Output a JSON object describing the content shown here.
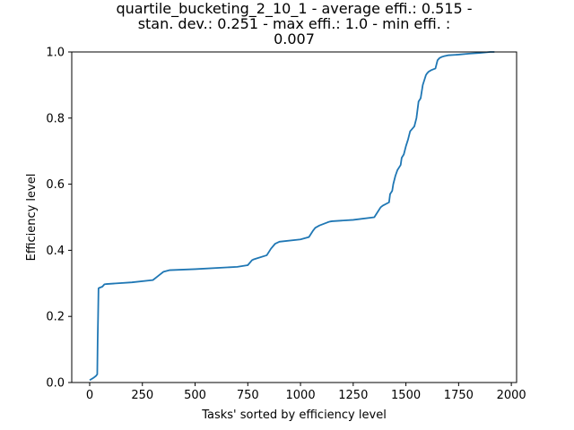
{
  "chart_data": {
    "type": "line",
    "title_lines": [
      "quartile_bucketing_2_10_1 - average effi.: 0.515 -",
      "stan. dev.: 0.251 - max effi.: 1.0 - min effi. :",
      "0.007"
    ],
    "xlabel": "Tasks' sorted by efficiency level",
    "ylabel": "Efficiency level",
    "xlim": [
      -85,
      2025
    ],
    "ylim": [
      0,
      1
    ],
    "x_ticks": [
      0,
      250,
      500,
      750,
      1000,
      1250,
      1500,
      1750,
      2000
    ],
    "y_ticks": [
      0.0,
      0.2,
      0.4,
      0.6,
      0.8,
      1.0
    ],
    "x_tick_labels": [
      "0",
      "250",
      "500",
      "750",
      "1000",
      "1250",
      "1500",
      "1750",
      "2000"
    ],
    "y_tick_labels": [
      "0.0",
      "0.2",
      "0.4",
      "0.6",
      "0.8",
      "1.0"
    ],
    "grid": false,
    "line_color": "#1f77b4",
    "series": [
      {
        "x": [
          0,
          20,
          30,
          36,
          38,
          40,
          42,
          48,
          60,
          70,
          80,
          200,
          300,
          320,
          330,
          350,
          380,
          500,
          700,
          750,
          770,
          780,
          790,
          840,
          860,
          880,
          900,
          1000,
          1040,
          1060,
          1070,
          1090,
          1130,
          1140,
          1150,
          1250,
          1350,
          1370,
          1380,
          1390,
          1420,
          1425,
          1430,
          1435,
          1440,
          1450,
          1460,
          1475,
          1480,
          1490,
          1500,
          1510,
          1520,
          1540,
          1550,
          1560,
          1570,
          1580,
          1590,
          1595,
          1600,
          1603,
          1607,
          1620,
          1640,
          1650,
          1660,
          1670,
          1680,
          1700,
          1750,
          1800,
          1850,
          1900,
          1920
        ],
        "y": [
          0.007,
          0.015,
          0.02,
          0.025,
          0.13,
          0.2,
          0.285,
          0.287,
          0.29,
          0.297,
          0.298,
          0.303,
          0.31,
          0.32,
          0.325,
          0.335,
          0.34,
          0.343,
          0.35,
          0.355,
          0.37,
          0.373,
          0.375,
          0.385,
          0.405,
          0.42,
          0.426,
          0.433,
          0.44,
          0.46,
          0.468,
          0.475,
          0.485,
          0.487,
          0.488,
          0.492,
          0.5,
          0.52,
          0.53,
          0.535,
          0.545,
          0.57,
          0.575,
          0.58,
          0.6,
          0.625,
          0.643,
          0.658,
          0.68,
          0.69,
          0.715,
          0.735,
          0.76,
          0.775,
          0.8,
          0.85,
          0.86,
          0.9,
          0.92,
          0.93,
          0.935,
          0.937,
          0.94,
          0.945,
          0.95,
          0.975,
          0.982,
          0.985,
          0.987,
          0.99,
          0.992,
          0.995,
          0.997,
          1.0,
          1.0
        ]
      }
    ]
  }
}
